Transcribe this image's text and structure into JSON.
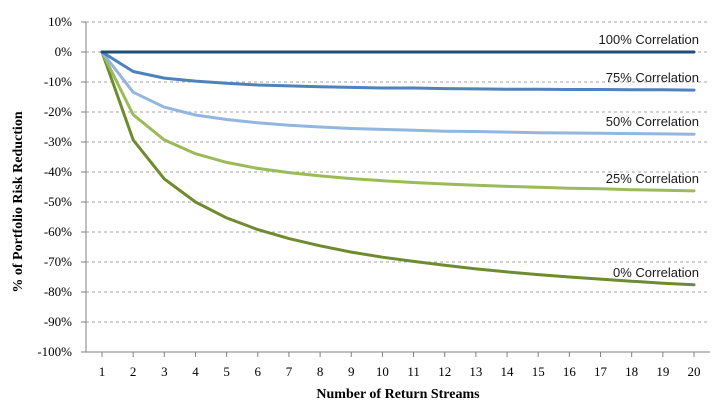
{
  "chart_data": {
    "type": "line",
    "xlabel": "Number of Return Streams",
    "ylabel": "% of Portfolio Risk Reduction",
    "x": [
      1,
      2,
      3,
      4,
      5,
      6,
      7,
      8,
      9,
      10,
      11,
      12,
      13,
      14,
      15,
      16,
      17,
      18,
      19,
      20
    ],
    "ylim": [
      -100,
      10
    ],
    "yticks": [
      10,
      0,
      -10,
      -20,
      -30,
      -40,
      -50,
      -60,
      -70,
      -80,
      -90,
      -100
    ],
    "ytick_labels": [
      "10%",
      "0%",
      "-10%",
      "-20%",
      "-30%",
      "-40%",
      "-50%",
      "-60%",
      "-70%",
      "-80%",
      "-90%",
      "-100%"
    ],
    "grid": "horizontal dashed",
    "series": [
      {
        "name": "100% Correlation",
        "color": "#1f4e79",
        "values": [
          0,
          0,
          0,
          0,
          0,
          0,
          0,
          0,
          0,
          0,
          0,
          0,
          0,
          0,
          0,
          0,
          0,
          0,
          0,
          0
        ]
      },
      {
        "name": "75% Correlation",
        "color": "#4f81bd",
        "values": [
          0,
          -6.5,
          -8.7,
          -9.7,
          -10.4,
          -11,
          -11.3,
          -11.6,
          -11.8,
          -12,
          -12,
          -12.2,
          -12.3,
          -12.4,
          -12.4,
          -12.5,
          -12.5,
          -12.6,
          -12.6,
          -12.7
        ]
      },
      {
        "name": "50% Correlation",
        "color": "#92b6e0",
        "values": [
          0,
          -13.4,
          -18.4,
          -21,
          -22.5,
          -23.6,
          -24.4,
          -25,
          -25.5,
          -25.8,
          -26.1,
          -26.4,
          -26.5,
          -26.7,
          -26.9,
          -27,
          -27.1,
          -27.2,
          -27.3,
          -27.4
        ]
      },
      {
        "name": "25% Correlation",
        "color": "#9bbb59",
        "values": [
          0,
          -20.9,
          -29.3,
          -33.9,
          -36.8,
          -38.8,
          -40.2,
          -41.3,
          -42.2,
          -42.9,
          -43.5,
          -44,
          -44.4,
          -44.8,
          -45.1,
          -45.4,
          -45.6,
          -45.9,
          -46.1,
          -46.3
        ]
      },
      {
        "name": "0% Correlation",
        "color": "#6e8b2f",
        "values": [
          0,
          -29.3,
          -42.3,
          -50,
          -55.3,
          -59.2,
          -62.2,
          -64.6,
          -66.7,
          -68.4,
          -69.8,
          -71.1,
          -72.3,
          -73.3,
          -74.2,
          -75,
          -75.7,
          -76.4,
          -77.1,
          -77.6
        ]
      }
    ]
  }
}
